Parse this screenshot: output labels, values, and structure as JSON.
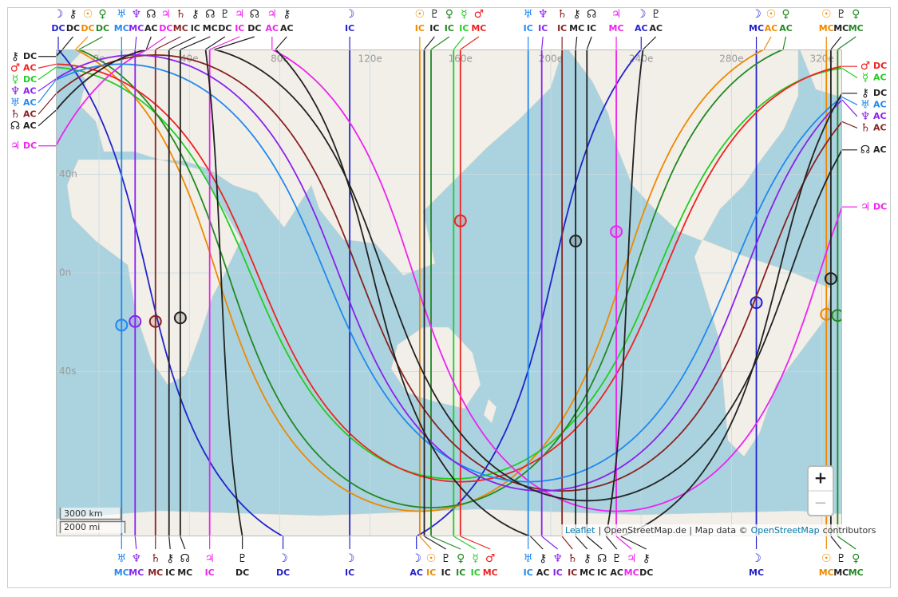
{
  "planets": [
    {
      "glyph": "☽",
      "color": "#2222cc",
      "mc_lon": 291,
      "dec": -13
    },
    {
      "glyph": "☉",
      "color": "#ee8800",
      "mc_lon": 322,
      "dec": -18
    },
    {
      "glyph": "☿",
      "color": "#22cc22",
      "mc_lon": 337,
      "dec": -23
    },
    {
      "glyph": "♀",
      "color": "#228822",
      "mc_lon": 327,
      "dec": -18.5
    },
    {
      "glyph": "♂",
      "color": "#ee2222",
      "mc_lon": 160,
      "dec": 22.5
    },
    {
      "glyph": "♃",
      "color": "#ee22ee",
      "mc_lon": 229,
      "dec": 18
    },
    {
      "glyph": "♄",
      "color": "#882222",
      "mc_lon": 25,
      "dec": -21
    },
    {
      "glyph": "♅",
      "color": "#2288ee",
      "mc_lon": 10,
      "dec": -22.5
    },
    {
      "glyph": "♆",
      "color": "#8822ee",
      "mc_lon": 16,
      "dec": -21
    },
    {
      "glyph": "♇",
      "color": "#222222",
      "mc_lon": 324,
      "dec": -2.5
    },
    {
      "glyph": "☊",
      "color": "#222222",
      "mc_lon": 36,
      "dec": -19.5
    },
    {
      "glyph": "⚷",
      "color": "#222222",
      "mc_lon": 211,
      "dec": 14
    }
  ],
  "angles": {
    "mc": "MC",
    "ic": "IC",
    "ac": "AC",
    "dc": "DC"
  },
  "lon_grid": [
    {
      "value": 0,
      "label": "0e"
    },
    {
      "value": 40,
      "label": "40e"
    },
    {
      "value": 80,
      "label": "80e"
    },
    {
      "value": 120,
      "label": "120e"
    },
    {
      "value": 160,
      "label": "160e"
    },
    {
      "value": 200,
      "label": "200e"
    },
    {
      "value": 240,
      "label": "240e"
    },
    {
      "value": 280,
      "label": "280e"
    },
    {
      "value": 320,
      "label": "320e"
    }
  ],
  "lat_grid": [
    {
      "value": 40,
      "label": "40n"
    },
    {
      "value": 0,
      "label": "0n"
    },
    {
      "value": -40,
      "label": "40s"
    }
  ],
  "scale": {
    "km": "3000 km",
    "mi": "2000 mi"
  },
  "zoom": {
    "in": "+",
    "out": "−"
  },
  "attribution": {
    "leaflet": "Leaflet",
    "middle": "| OpenStreetMap.de | Map data ©",
    "osm": "OpenStreetMap",
    "tail": "contributors"
  }
}
